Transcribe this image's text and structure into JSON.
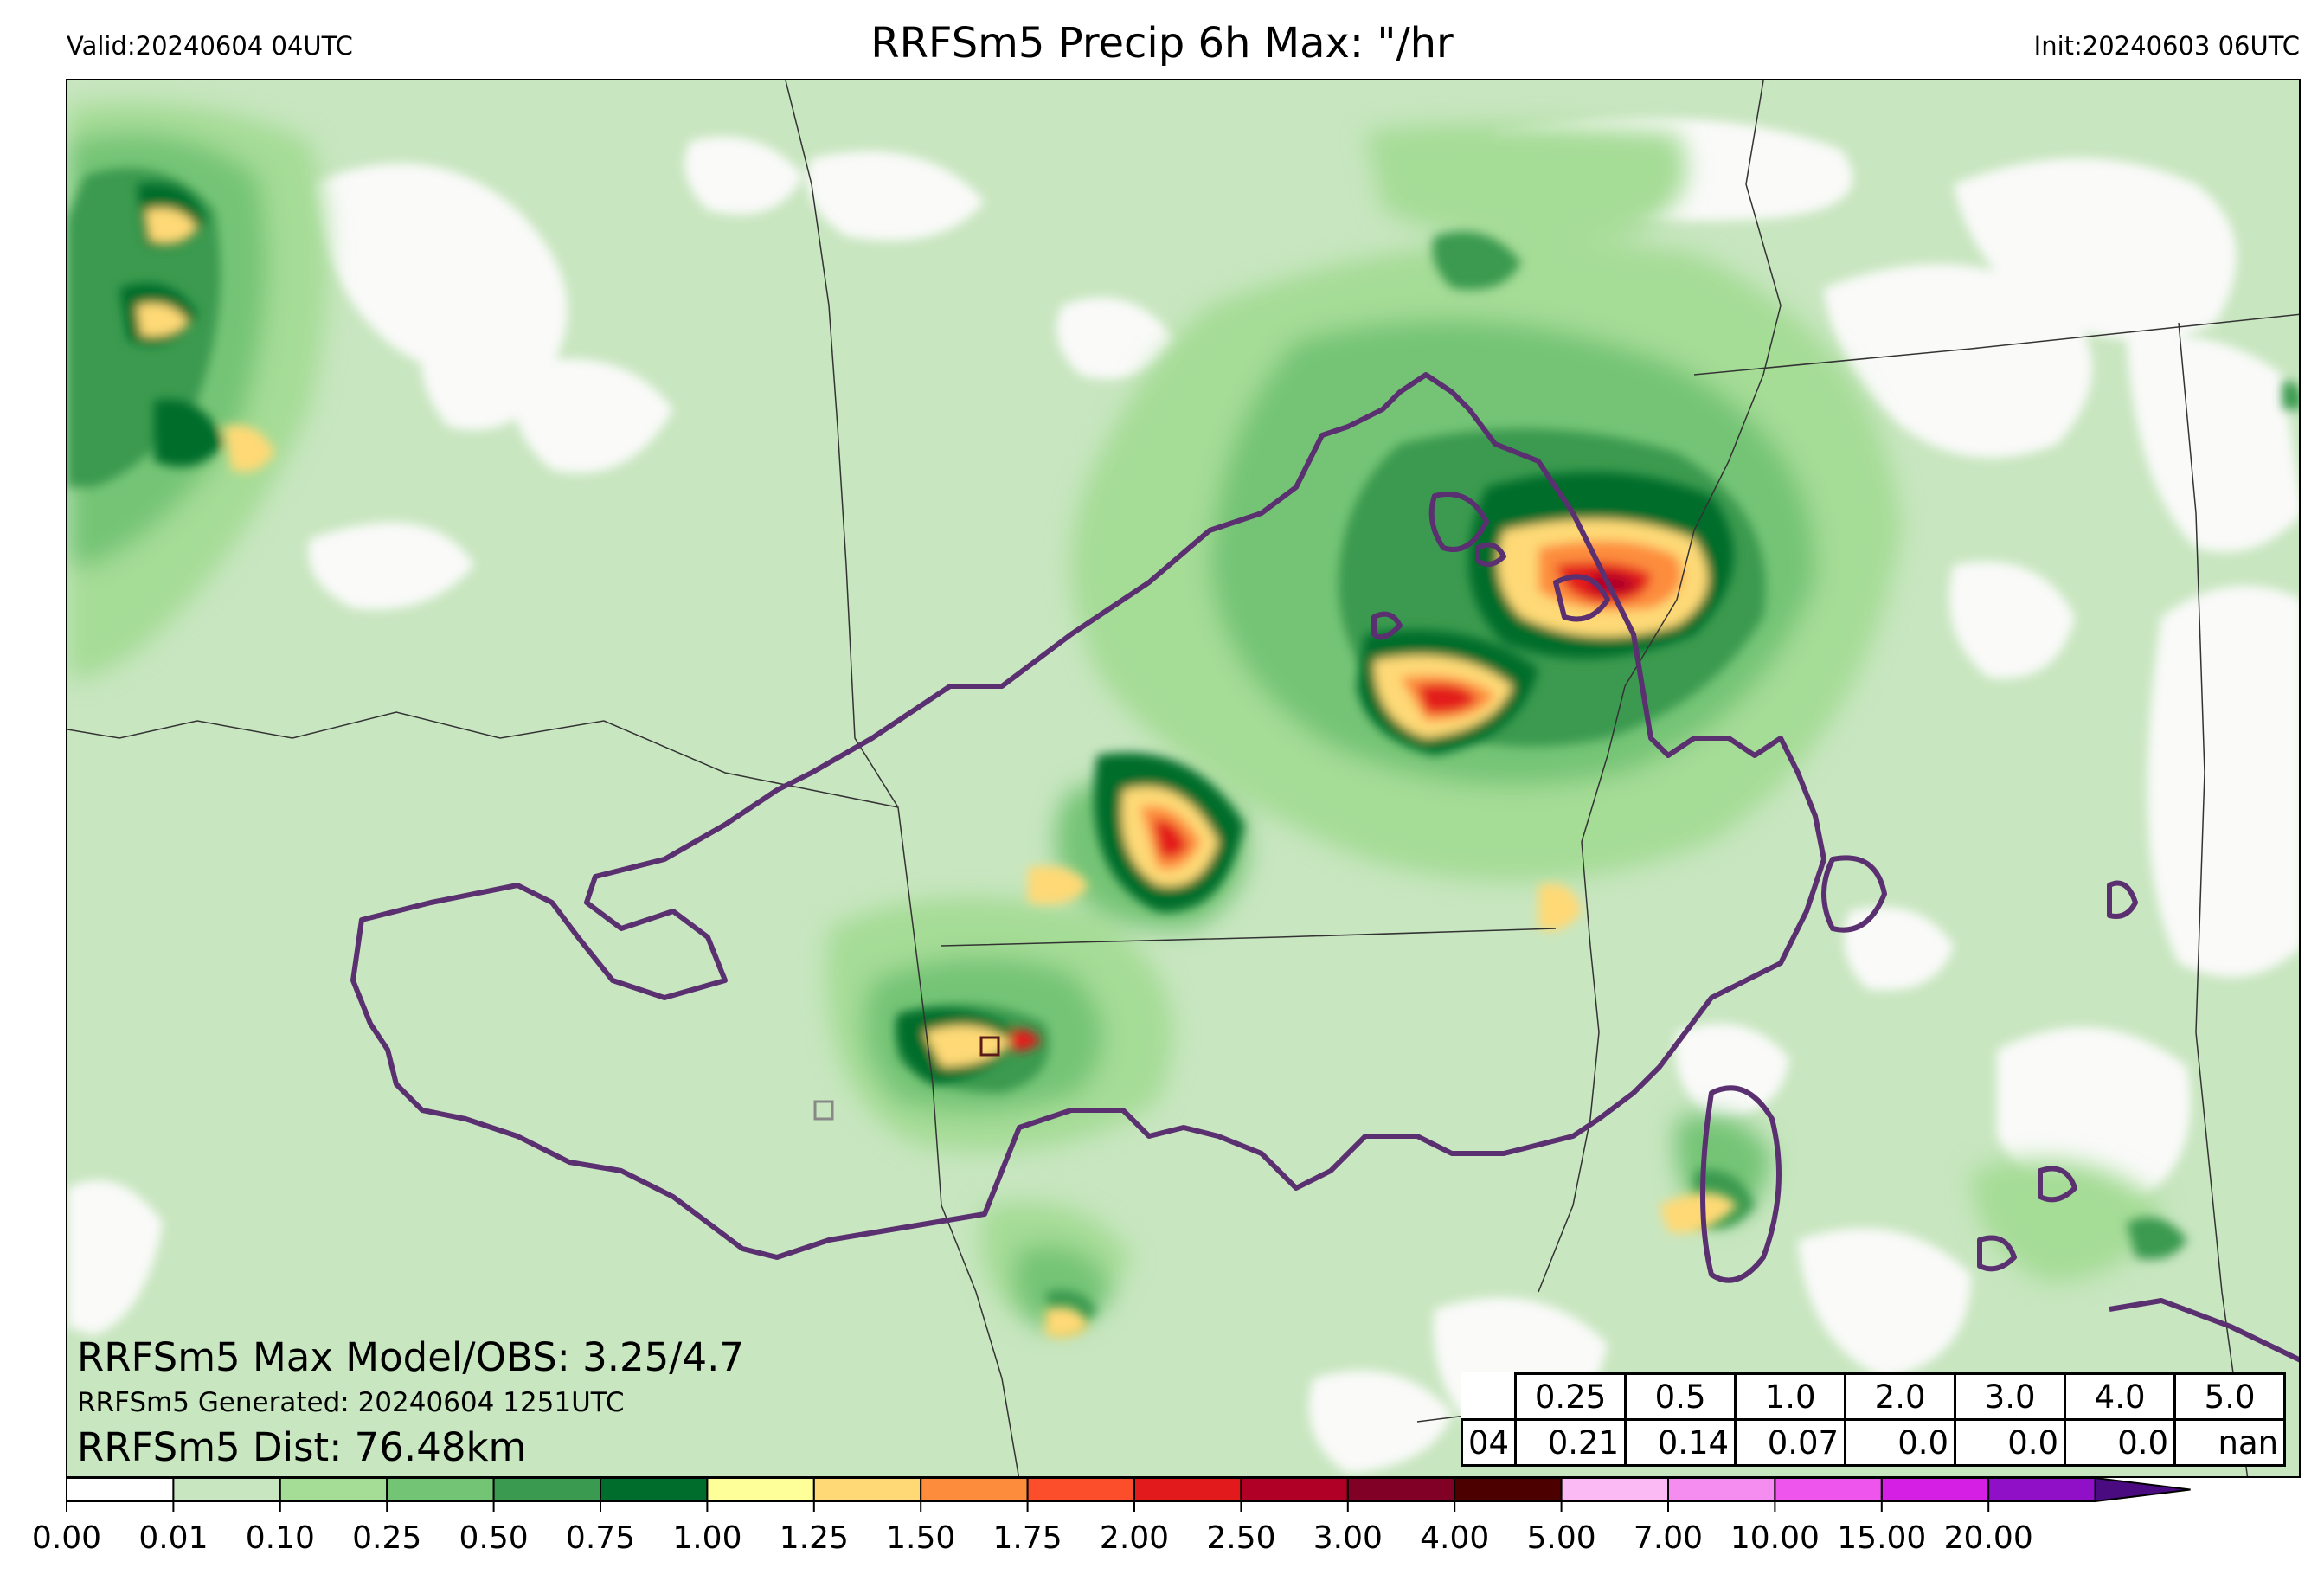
{
  "header": {
    "valid": "Valid:20240604 04UTC",
    "title": "RRFSm5 Precip 6h Max: \"/hr",
    "init": "Init:20240603 06UTC"
  },
  "annotations": {
    "max_line": "RRFSm5 Max Model/OBS: 3.25/4.7",
    "generated": "RRFSm5 Generated: 20240604 1251UTC",
    "dist": "RRFSm5 Dist: 76.48km"
  },
  "threshold_table": {
    "thresholds": [
      "0.25",
      "0.5",
      "1.0",
      "2.0",
      "3.0",
      "4.0",
      "5.0"
    ],
    "row_label": "04",
    "values": [
      "0.21",
      "0.14",
      "0.07",
      "0.0",
      "0.0",
      "0.0",
      "nan"
    ]
  },
  "colorbar": {
    "ticks": [
      "0.00",
      "0.01",
      "0.10",
      "0.25",
      "0.50",
      "0.75",
      "1.00",
      "1.25",
      "1.50",
      "1.75",
      "2.00",
      "2.50",
      "3.00",
      "4.00",
      "5.00",
      "7.00",
      "10.00",
      "15.00",
      "20.00"
    ],
    "colors": [
      "#ffffff",
      "#c8e6c0",
      "#a5dc96",
      "#74c476",
      "#3a9a50",
      "#006d2c",
      "#ffff99",
      "#fed976",
      "#fd8d3c",
      "#fc4e2a",
      "#e31a1c",
      "#b10026",
      "#800026",
      "#4d0000",
      "#fcbaf5",
      "#f58cf0",
      "#ee55ec",
      "#d51fe5",
      "#9010c8"
    ],
    "extend_color": "#4a0a80"
  }
}
